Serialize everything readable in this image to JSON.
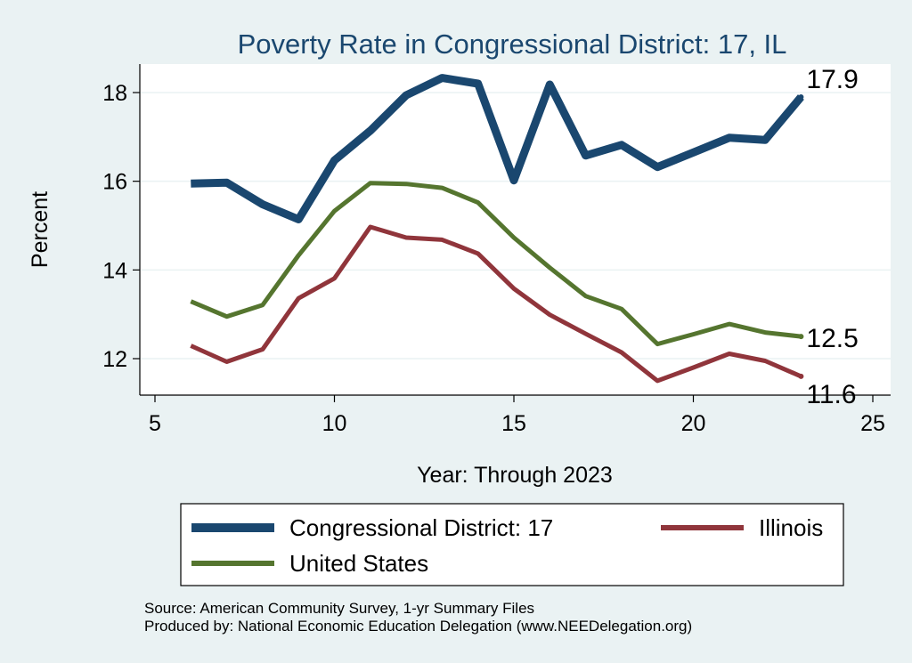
{
  "chart_data": {
    "type": "line",
    "title": "Poverty Rate in Congressional District:  17, IL",
    "xlabel": "Year: Through 2023",
    "ylabel": "Percent",
    "xlim": [
      5,
      25
    ],
    "ylim": [
      11.2,
      18.7
    ],
    "xticks": [
      5,
      10,
      15,
      20,
      25
    ],
    "yticks": [
      12,
      14,
      16,
      18
    ],
    "grid": true,
    "legend_position": "bottom",
    "series": [
      {
        "name": "Congressional District:  17",
        "color": "#1a476f",
        "x": [
          6,
          7,
          8,
          9,
          10,
          11,
          12,
          13,
          14,
          15,
          16,
          17,
          18,
          19,
          20,
          21,
          22,
          23
        ],
        "y": [
          15.95,
          15.97,
          15.48,
          15.14,
          16.47,
          17.14,
          17.94,
          18.33,
          18.2,
          16.02,
          18.18,
          16.58,
          16.82,
          16.32,
          16.65,
          16.98,
          16.93,
          17.9
        ],
        "end_label": "17.9"
      },
      {
        "name": "United States",
        "color": "#55752f",
        "x": [
          6,
          7,
          8,
          9,
          10,
          11,
          12,
          13,
          14,
          15,
          16,
          17,
          18,
          19,
          20,
          21,
          22,
          23
        ],
        "y": [
          13.29,
          12.95,
          13.21,
          14.33,
          15.33,
          15.96,
          15.94,
          15.85,
          15.52,
          14.73,
          14.05,
          13.41,
          13.12,
          12.33,
          12.55,
          12.78,
          12.59,
          12.5
        ],
        "end_label": "12.5"
      },
      {
        "name": "Illinois",
        "color": "#90353b",
        "x": [
          6,
          7,
          8,
          9,
          10,
          11,
          12,
          13,
          14,
          15,
          16,
          17,
          18,
          19,
          20,
          21,
          22,
          23
        ],
        "y": [
          12.29,
          11.93,
          12.21,
          13.36,
          13.81,
          14.97,
          14.73,
          14.68,
          14.37,
          13.58,
          12.99,
          12.56,
          12.14,
          11.5,
          11.8,
          12.11,
          11.95,
          11.6
        ],
        "end_label": "11.6"
      }
    ],
    "notes": [
      "Source: American Community Survey, 1-yr Summary Files",
      "Produced by: National Economic Education Delegation (www.NEEDelegation.org)"
    ]
  }
}
